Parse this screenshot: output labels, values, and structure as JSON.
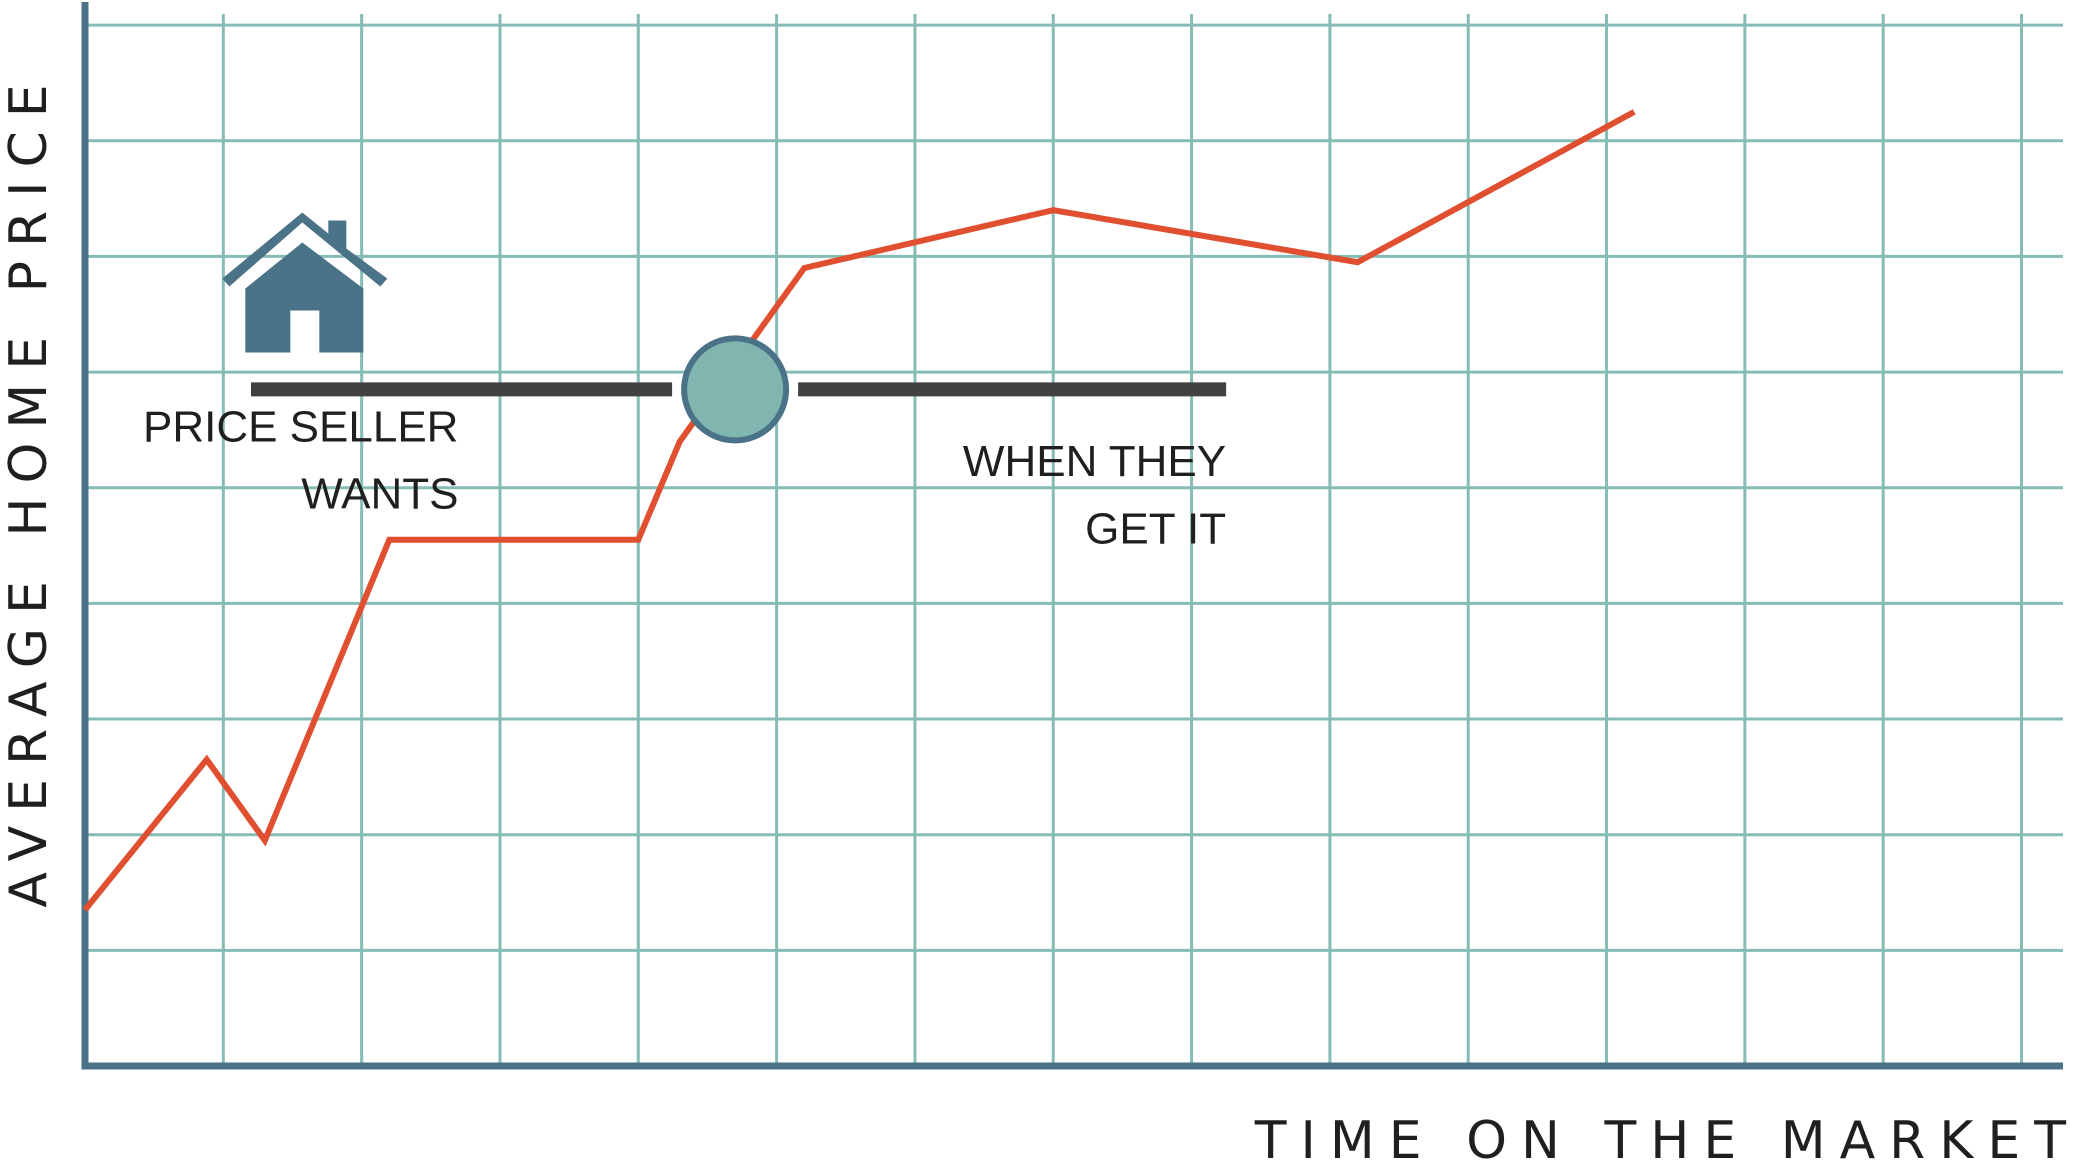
{
  "chart_data": {
    "type": "line",
    "title": "",
    "xlabel": "TIME ON THE MARKET",
    "ylabel": "AVERAGE HOME PRICE",
    "grid": true,
    "x_ticks_labeled": false,
    "y_ticks_labeled": false,
    "xlim": [
      0,
      14.3
    ],
    "ylim": [
      0,
      9.2
    ],
    "series": [
      {
        "name": "",
        "color": "#e04f2f",
        "x": [
          0,
          0.88,
          1.3,
          2.2,
          4.0,
          4.3,
          5.2,
          7.0,
          9.2,
          11.2
        ],
        "y": [
          1.35,
          2.65,
          1.95,
          4.55,
          4.55,
          5.4,
          6.9,
          7.4,
          6.95,
          8.25
        ]
      }
    ],
    "target_line": {
      "y": 5.85,
      "x_start": 1.2,
      "x_end": 8.25,
      "color": "#414141",
      "marker_x": 4.7,
      "marker_color": "#80b5b0"
    },
    "annotations": [
      {
        "lines": [
          "PRICE SELLER",
          "WANTS"
        ],
        "align": "right",
        "x": 2.7,
        "y": 5.4,
        "y2": 4.82
      },
      {
        "lines": [
          "WHEN THEY",
          "GET IT"
        ],
        "align": "right",
        "x": 8.25,
        "y": 5.1,
        "y2": 4.52
      }
    ],
    "icon": {
      "name": "house-icon",
      "color": "#4b7387",
      "x": 1.6,
      "y": 6.1
    },
    "colors": {
      "axis": "#4b7387",
      "grid": "#86bcb6",
      "line": "#e04f2f",
      "bar": "#414141"
    }
  }
}
